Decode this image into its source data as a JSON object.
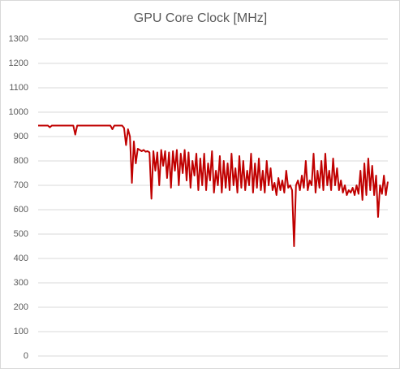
{
  "chart_data": {
    "type": "line",
    "title": "GPU Core Clock [MHz]",
    "color": "#c00000",
    "grid": true,
    "ylim": [
      0,
      1300
    ],
    "yticks": [
      0,
      100,
      200,
      300,
      400,
      500,
      600,
      700,
      800,
      900,
      1000,
      1100,
      1200,
      1300
    ],
    "values": [
      945,
      945,
      945,
      945,
      945,
      945,
      938,
      945,
      945,
      945,
      945,
      945,
      945,
      945,
      945,
      945,
      945,
      945,
      945,
      908,
      945,
      945,
      945,
      945,
      945,
      945,
      945,
      945,
      945,
      945,
      945,
      945,
      945,
      945,
      945,
      945,
      945,
      945,
      930,
      945,
      945,
      945,
      945,
      945,
      935,
      865,
      930,
      900,
      710,
      880,
      790,
      850,
      845,
      840,
      845,
      838,
      840,
      835,
      645,
      840,
      760,
      835,
      700,
      845,
      780,
      840,
      730,
      835,
      690,
      840,
      760,
      845,
      700,
      830,
      750,
      845,
      720,
      835,
      690,
      800,
      740,
      830,
      680,
      810,
      700,
      830,
      680,
      790,
      720,
      840,
      670,
      760,
      700,
      820,
      670,
      800,
      690,
      790,
      680,
      830,
      700,
      770,
      670,
      820,
      690,
      800,
      680,
      760,
      700,
      830,
      670,
      790,
      690,
      810,
      680,
      760,
      670,
      800,
      700,
      770,
      680,
      710,
      660,
      730,
      680,
      720,
      670,
      760,
      690,
      700,
      680,
      450,
      700,
      720,
      680,
      740,
      690,
      800,
      680,
      720,
      700,
      830,
      670,
      760,
      690,
      800,
      680,
      830,
      700,
      760,
      680,
      810,
      700,
      770,
      680,
      720,
      670,
      700,
      660,
      680,
      670,
      690,
      660,
      700,
      665,
      760,
      640,
      790,
      660,
      810,
      680,
      780,
      660,
      740,
      570,
      700,
      665,
      740,
      660,
      715
    ]
  }
}
